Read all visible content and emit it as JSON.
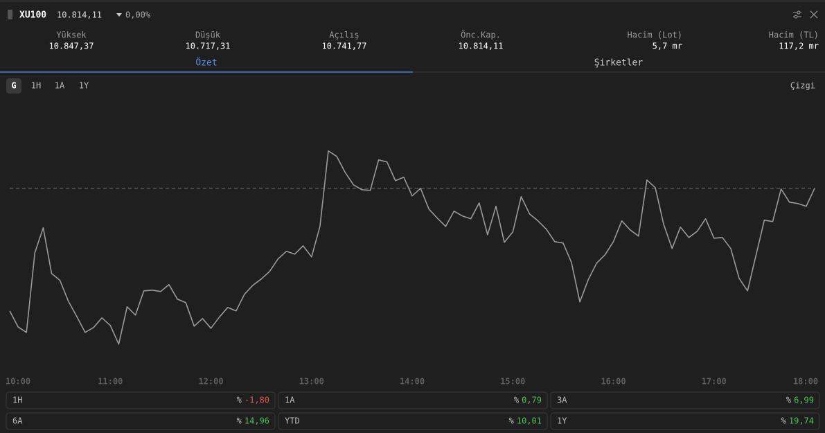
{
  "header": {
    "symbol": "XU100",
    "price": "10.814,11",
    "change": "0,00%"
  },
  "stats": [
    {
      "label": "Yüksek",
      "value": "10.847,37"
    },
    {
      "label": "Düşük",
      "value": "10.717,31"
    },
    {
      "label": "Açılış",
      "value": "10.741,77"
    },
    {
      "label": "Önc.Kap.",
      "value": "10.814,11"
    },
    {
      "label": "Hacim (Lot)",
      "value": "5,7 mr"
    },
    {
      "label": "Hacim (TL)",
      "value": "117,2 mr"
    }
  ],
  "tabs": [
    "Özet",
    "Şirketler"
  ],
  "periods": [
    "G",
    "1H",
    "1A",
    "1Y"
  ],
  "chart_style": "Çizgi",
  "chart_data": {
    "type": "line",
    "color": "#9a9a9a",
    "reference_line": 10814.11,
    "values": [
      10725.6,
      10714.1,
      10710.1,
      10767.6,
      10785.6,
      10752.6,
      10747.6,
      10732.6,
      10721.6,
      10710.1,
      10713.6,
      10720.6,
      10715.1,
      10701.6,
      10728.6,
      10722.6,
      10740.1,
      10740.6,
      10739.6,
      10744.6,
      10734.1,
      10731.6,
      10714.6,
      10720.1,
      10713.1,
      10721.1,
      10728.1,
      10725.6,
      10737.6,
      10744.1,
      10748.6,
      10754.1,
      10763.1,
      10768.6,
      10766.6,
      10772.6,
      10764.6,
      10786.6,
      10841.1,
      10837.1,
      10825.6,
      10816.6,
      10813.1,
      10812.6,
      10834.6,
      10833.1,
      10819.6,
      10822.1,
      10808.6,
      10814.1,
      10799.1,
      10792.6,
      10786.6,
      10797.6,
      10794.1,
      10792.1,
      10803.6,
      10780.6,
      10801.1,
      10775.1,
      10782.6,
      10808.1,
      10795.6,
      10790.6,
      10784.6,
      10775.6,
      10774.6,
      10760.6,
      10732.1,
      10748.1,
      10760.1,
      10766.1,
      10775.6,
      10790.6,
      10784.1,
      10779.6,
      10820.1,
      10814.6,
      10788.1,
      10770.6,
      10786.1,
      10778.6,
      10783.1,
      10792.1,
      10778.1,
      10778.6,
      10770.6,
      10749.1,
      10740.1,
      10765.6,
      10791.1,
      10790.1,
      10813.6,
      10804.1,
      10803.1,
      10801.1,
      10814.1
    ],
    "xlim": [
      0,
      96
    ],
    "ylim": [
      10680,
      10880
    ],
    "xticks": [
      {
        "value": 0,
        "label": "10:00"
      },
      {
        "value": 12,
        "label": "11:00"
      },
      {
        "value": 24,
        "label": "12:00"
      },
      {
        "value": 36,
        "label": "13:00"
      },
      {
        "value": 48,
        "label": "14:00"
      },
      {
        "value": 60,
        "label": "15:00"
      },
      {
        "value": 72,
        "label": "16:00"
      },
      {
        "value": 84,
        "label": "17:00"
      },
      {
        "value": 96,
        "label": "18:00"
      }
    ]
  },
  "performance": [
    {
      "label": "1H",
      "unit": "%",
      "value": "-1,80"
    },
    {
      "label": "1A",
      "unit": "%",
      "value": "0,79"
    },
    {
      "label": "3A",
      "unit": "%",
      "value": "6,99"
    },
    {
      "label": "6A",
      "unit": "%",
      "value": "14,96"
    },
    {
      "label": "YTD",
      "unit": "%",
      "value": "10,01"
    },
    {
      "label": "1Y",
      "unit": "%",
      "value": "19,74"
    }
  ]
}
